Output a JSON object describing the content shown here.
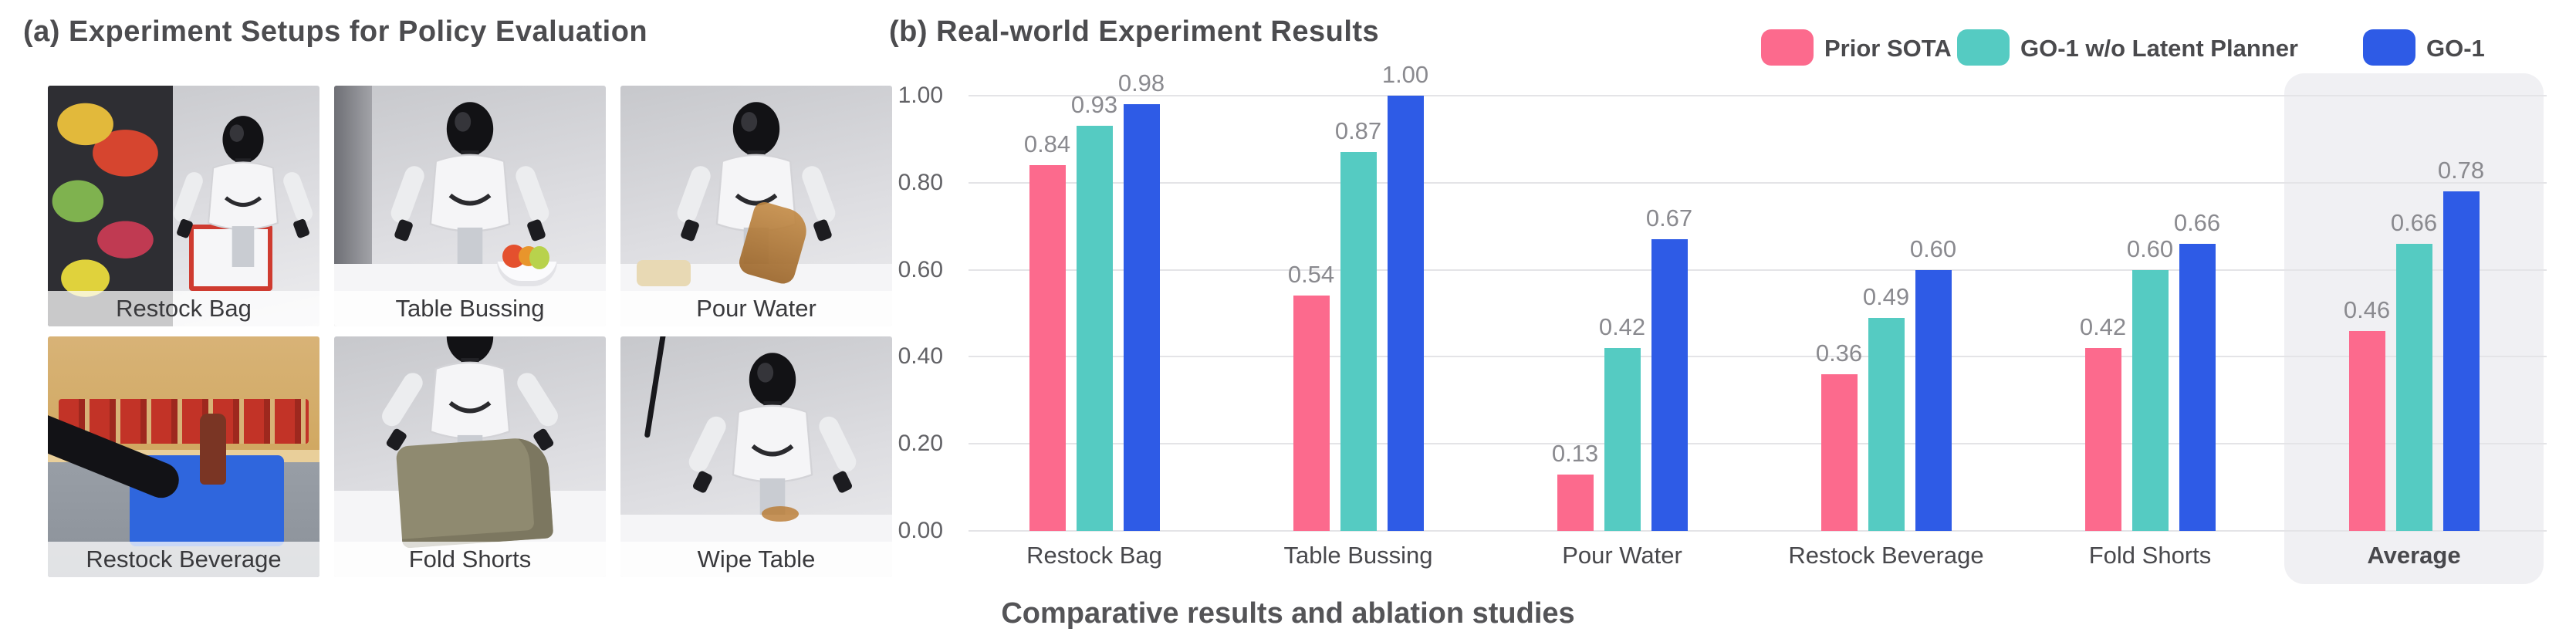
{
  "panel_a": {
    "title": "(a) Experiment Setups for Policy Evaluation",
    "photos": [
      {
        "label": "Restock Bag"
      },
      {
        "label": "Table Bussing"
      },
      {
        "label": "Pour Water"
      },
      {
        "label": "Restock Beverage"
      },
      {
        "label": "Fold Shorts"
      },
      {
        "label": "Wipe Table"
      }
    ]
  },
  "panel_b": {
    "title": "(b) Real-world Experiment Results",
    "caption": "Comparative results and ablation studies"
  },
  "chart_data": {
    "type": "bar",
    "title": "(b) Real-world Experiment Results",
    "categories": [
      "Restock Bag",
      "Table Bussing",
      "Pour Water",
      "Restock Beverage",
      "Fold Shorts",
      "Average"
    ],
    "series": [
      {
        "name": "Prior SOTA",
        "color": "#FC6A8D",
        "values": [
          0.84,
          0.54,
          0.13,
          0.36,
          0.42,
          0.46
        ]
      },
      {
        "name": "GO-1 w/o Latent Planner",
        "color": "#55CBC2",
        "values": [
          0.93,
          0.87,
          0.42,
          0.49,
          0.6,
          0.66
        ]
      },
      {
        "name": "GO-1",
        "color": "#2E5BE6",
        "values": [
          0.98,
          1.0,
          0.67,
          0.6,
          0.66,
          0.78
        ]
      }
    ],
    "xlabel": "",
    "ylabel": "",
    "ylim": [
      0,
      1
    ],
    "yticks": [
      "0.00",
      "0.20",
      "0.40",
      "0.60",
      "0.80",
      "1.00"
    ],
    "grid": true,
    "legend_position": "top-right",
    "value_labels": true,
    "highlight_category": "Average",
    "grid_color": "#E4E4E7",
    "value_label_color": "#8A8A8F",
    "highlight_color": "#F0F0F3"
  }
}
